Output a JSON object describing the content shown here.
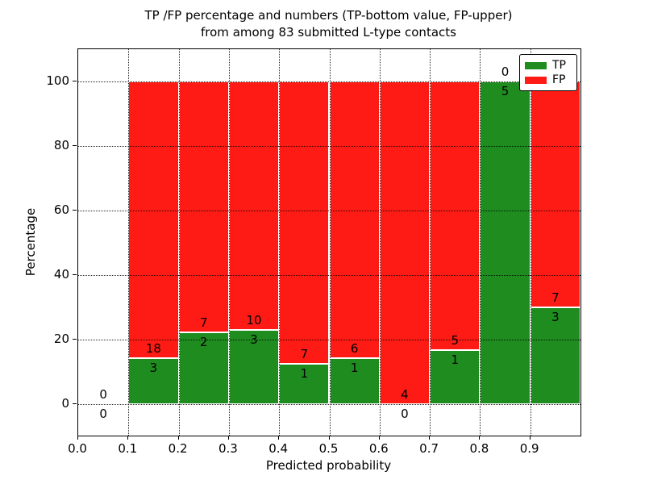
{
  "figure": {
    "title_line1": "TP /FP percentage and numbers (TP-bottom value, FP-upper)",
    "title_line2": "from among 83 submitted L-type contacts",
    "xlabel": "Predicted probability",
    "ylabel": "Percentage"
  },
  "colors": {
    "tp": "#1f8c1f",
    "fp": "#ff1b15",
    "grid": "#000000",
    "text": "#000000",
    "background": "#ffffff"
  },
  "chart_data": {
    "type": "bar",
    "stacked": true,
    "title": "TP /FP percentage and numbers (TP-bottom value, FP-upper) from among 83 submitted L-type contacts",
    "xlabel": "Predicted probability",
    "ylabel": "Percentage",
    "total_contacts": 83,
    "xlim": [
      0.0,
      1.0
    ],
    "ylim": [
      0,
      100
    ],
    "grid": true,
    "grid_style": "dotted",
    "legend_position": "upper right",
    "x_ticks": [
      "0.0",
      "0.1",
      "0.2",
      "0.3",
      "0.4",
      "0.5",
      "0.6",
      "0.7",
      "0.8",
      "0.9"
    ],
    "y_ticks": [
      "0",
      "20",
      "40",
      "60",
      "80",
      "100"
    ],
    "legend": [
      {
        "label": "TP",
        "color": "#1f8c1f"
      },
      {
        "label": "FP",
        "color": "#ff1b15"
      }
    ],
    "bins": [
      {
        "range": "0.0-0.1",
        "tp": 0,
        "fp": 0,
        "tp_pct": 0,
        "fp_pct": 0
      },
      {
        "range": "0.1-0.2",
        "tp": 3,
        "fp": 18,
        "tp_pct": 14.2857,
        "fp_pct": 85.7143
      },
      {
        "range": "0.2-0.3",
        "tp": 2,
        "fp": 7,
        "tp_pct": 22.2222,
        "fp_pct": 77.7778
      },
      {
        "range": "0.3-0.4",
        "tp": 3,
        "fp": 10,
        "tp_pct": 23.0769,
        "fp_pct": 76.9231
      },
      {
        "range": "0.4-0.5",
        "tp": 1,
        "fp": 7,
        "tp_pct": 12.5,
        "fp_pct": 87.5
      },
      {
        "range": "0.5-0.6",
        "tp": 1,
        "fp": 6,
        "tp_pct": 14.2857,
        "fp_pct": 85.7143
      },
      {
        "range": "0.6-0.7",
        "tp": 0,
        "fp": 4,
        "tp_pct": 0,
        "fp_pct": 100
      },
      {
        "range": "0.7-0.8",
        "tp": 1,
        "fp": 5,
        "tp_pct": 16.6667,
        "fp_pct": 83.3333
      },
      {
        "range": "0.8-0.9",
        "tp": 5,
        "fp": 0,
        "tp_pct": 100,
        "fp_pct": 0
      },
      {
        "range": "0.9-1.0",
        "tp": 3,
        "fp": 7,
        "tp_pct": 30,
        "fp_pct": 70
      }
    ]
  }
}
